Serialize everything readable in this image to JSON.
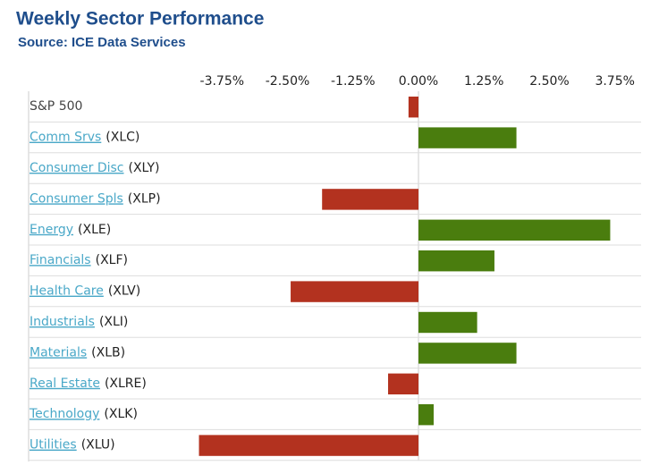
{
  "chart_data": {
    "type": "hbar",
    "title": "Weekly Sector Performance",
    "subtitle": "Source: ICE Data Services",
    "categories": [
      "S&P 500",
      "Comm Srvs",
      "Consumer Disc",
      "Consumer Spls",
      "Energy",
      "Financials",
      "Health Care",
      "Industrials",
      "Materials",
      "Real Estate",
      "Technology",
      "Utilities"
    ],
    "tickers": [
      null,
      "(XLC)",
      "(XLY)",
      "(XLP)",
      "(XLE)",
      "(XLF)",
      "(XLV)",
      "(XLI)",
      "(XLB)",
      "(XLRE)",
      "(XLK)",
      "(XLU)"
    ],
    "linked": [
      false,
      true,
      true,
      true,
      true,
      true,
      true,
      true,
      true,
      true,
      true,
      true
    ],
    "values": [
      -0.19,
      1.87,
      0,
      -1.84,
      3.66,
      1.45,
      -2.44,
      1.12,
      1.87,
      -0.58,
      0.29,
      -4.19
    ],
    "positive_color": "#4a7d0e",
    "negative_color": "#b3321f",
    "xlim": [
      -4.25,
      4.25
    ],
    "xticks": [
      {
        "value": -3.75,
        "label": "-3.75%"
      },
      {
        "value": -2.5,
        "label": "-2.50%"
      },
      {
        "value": -1.25,
        "label": "-1.25%"
      },
      {
        "value": 0,
        "label": "0.00%"
      },
      {
        "value": 1.25,
        "label": "1.25%"
      },
      {
        "value": 2.5,
        "label": "2.50%"
      },
      {
        "value": 3.75,
        "label": "3.75%"
      }
    ]
  }
}
